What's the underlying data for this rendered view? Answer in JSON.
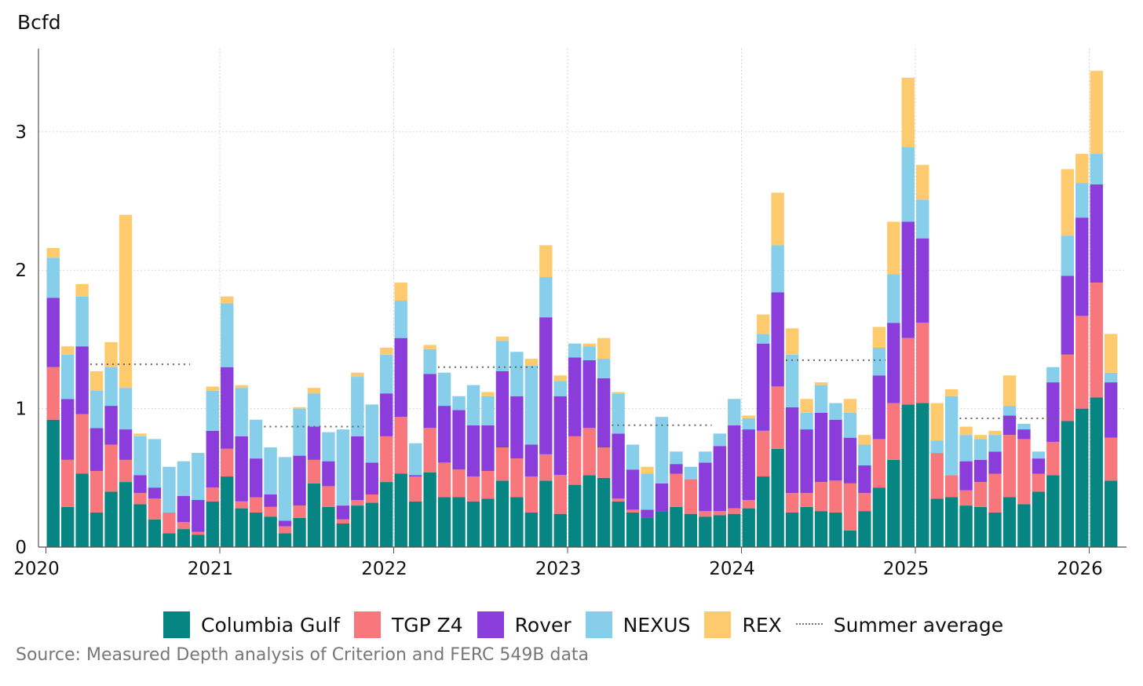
{
  "chart_data": {
    "type": "stacked-bar",
    "unit_label": "Bcfd",
    "ylim": [
      0,
      3.6
    ],
    "yticks": [
      0,
      1,
      2,
      3
    ],
    "xticks": [
      "2020",
      "2021",
      "2022",
      "2023",
      "2024",
      "2025",
      "2026"
    ],
    "first_month": "2020-01",
    "series": [
      {
        "name": "Columbia Gulf",
        "color": "#068582",
        "values": [
          0.92,
          0.29,
          0.53,
          0.25,
          0.4,
          0.47,
          0.31,
          0.2,
          0.1,
          0.13,
          0.09,
          0.33,
          0.51,
          0.28,
          0.25,
          0.22,
          0.1,
          0.21,
          0.46,
          0.29,
          0.17,
          0.3,
          0.32,
          0.47,
          0.53,
          0.33,
          0.54,
          0.36,
          0.36,
          0.33,
          0.35,
          0.48,
          0.36,
          0.25,
          0.48,
          0.24,
          0.45,
          0.52,
          0.5,
          0.33,
          0.25,
          0.21,
          0.26,
          0.29,
          0.24,
          0.22,
          0.23,
          0.24,
          0.28,
          0.51,
          0.71,
          0.25,
          0.29,
          0.26,
          0.25,
          0.12,
          0.26,
          0.43,
          0.63,
          1.03,
          1.04,
          0.35,
          0.36,
          0.3,
          0.29,
          0.25,
          0.36,
          0.31,
          0.4,
          0.52,
          0.91,
          1.0,
          1.08,
          0.48
        ]
      },
      {
        "name": "TGP Z4",
        "color": "#F8777D",
        "values": [
          0.38,
          0.34,
          0.43,
          0.3,
          0.34,
          0.16,
          0.08,
          0.15,
          0.15,
          0.05,
          0.02,
          0.1,
          0.2,
          0.05,
          0.11,
          0.07,
          0.05,
          0.09,
          0.17,
          0.15,
          0.03,
          0.04,
          0.06,
          0.33,
          0.41,
          0.18,
          0.32,
          0.25,
          0.2,
          0.18,
          0.2,
          0.24,
          0.28,
          0.26,
          0.19,
          0.28,
          0.35,
          0.34,
          0.22,
          0.02,
          0.02,
          0.0,
          0.0,
          0.24,
          0.25,
          0.04,
          0.03,
          0.04,
          0.06,
          0.33,
          0.45,
          0.14,
          0.1,
          0.21,
          0.23,
          0.34,
          0.13,
          0.35,
          0.41,
          0.48,
          0.58,
          0.33,
          0.16,
          0.11,
          0.18,
          0.28,
          0.45,
          0.47,
          0.13,
          0.24,
          0.48,
          0.67,
          0.83,
          0.31
        ]
      },
      {
        "name": "Rover",
        "color": "#8A3DDB",
        "values": [
          0.5,
          0.44,
          0.49,
          0.31,
          0.28,
          0.22,
          0.13,
          0.08,
          0.0,
          0.19,
          0.23,
          0.41,
          0.59,
          0.47,
          0.28,
          0.09,
          0.04,
          0.36,
          0.24,
          0.18,
          0.1,
          0.46,
          0.23,
          0.31,
          0.57,
          0.01,
          0.39,
          0.41,
          0.43,
          0.37,
          0.33,
          0.55,
          0.45,
          0.23,
          0.99,
          0.57,
          0.57,
          0.49,
          0.5,
          0.47,
          0.29,
          0.06,
          0.2,
          0.07,
          0.0,
          0.35,
          0.47,
          0.6,
          0.51,
          0.63,
          0.68,
          0.62,
          0.46,
          0.5,
          0.44,
          0.33,
          0.2,
          0.46,
          0.58,
          0.84,
          0.61,
          0.0,
          0.0,
          0.21,
          0.16,
          0.16,
          0.14,
          0.07,
          0.11,
          0.43,
          0.57,
          0.71,
          0.71,
          0.4
        ]
      },
      {
        "name": "NEXUS",
        "color": "#87CEEB",
        "values": [
          0.29,
          0.32,
          0.36,
          0.27,
          0.28,
          0.3,
          0.28,
          0.35,
          0.33,
          0.25,
          0.34,
          0.29,
          0.46,
          0.35,
          0.28,
          0.34,
          0.46,
          0.34,
          0.24,
          0.21,
          0.55,
          0.43,
          0.42,
          0.28,
          0.27,
          0.23,
          0.18,
          0.24,
          0.1,
          0.29,
          0.21,
          0.22,
          0.32,
          0.57,
          0.29,
          0.11,
          0.1,
          0.1,
          0.14,
          0.29,
          0.18,
          0.26,
          0.48,
          0.09,
          0.09,
          0.08,
          0.09,
          0.19,
          0.08,
          0.07,
          0.34,
          0.38,
          0.12,
          0.2,
          0.12,
          0.18,
          0.15,
          0.2,
          0.35,
          0.54,
          0.28,
          0.09,
          0.57,
          0.19,
          0.15,
          0.12,
          0.07,
          0.04,
          0.05,
          0.11,
          0.29,
          0.25,
          0.22,
          0.07
        ]
      },
      {
        "name": "REX",
        "color": "#FDCB6E",
        "values": [
          0.07,
          0.06,
          0.09,
          0.14,
          0.18,
          1.25,
          0.02,
          0.0,
          0.0,
          0.0,
          0.0,
          0.03,
          0.05,
          0.02,
          0.0,
          0.0,
          0.0,
          0.01,
          0.04,
          0.0,
          0.0,
          0.03,
          0.0,
          0.05,
          0.13,
          0.0,
          0.03,
          0.0,
          0.0,
          0.0,
          0.03,
          0.03,
          0.0,
          0.05,
          0.23,
          0.04,
          0.0,
          0.02,
          0.15,
          0.01,
          0.0,
          0.05,
          0.0,
          0.0,
          0.0,
          0.0,
          0.0,
          0.0,
          0.02,
          0.14,
          0.38,
          0.19,
          0.1,
          0.02,
          0.0,
          0.1,
          0.07,
          0.15,
          0.38,
          0.5,
          0.25,
          0.27,
          0.05,
          0.06,
          0.03,
          0.03,
          0.22,
          0.0,
          0.0,
          0.0,
          0.48,
          0.21,
          0.6,
          0.28
        ]
      }
    ],
    "summer_average": [
      {
        "from": "2020-04",
        "to": "2020-10",
        "value": 1.32
      },
      {
        "from": "2021-04",
        "to": "2021-10",
        "value": 0.87
      },
      {
        "from": "2022-04",
        "to": "2022-10",
        "value": 1.3
      },
      {
        "from": "2023-04",
        "to": "2023-10",
        "value": 0.88
      },
      {
        "from": "2024-04",
        "to": "2024-10",
        "value": 1.35
      },
      {
        "from": "2025-04",
        "to": "2025-10",
        "value": 0.93
      }
    ]
  },
  "legend": {
    "items": [
      {
        "label": "Columbia Gulf",
        "color": "#068582"
      },
      {
        "label": "TGP Z4",
        "color": "#F8777D"
      },
      {
        "label": "Rover",
        "color": "#8A3DDB"
      },
      {
        "label": "NEXUS",
        "color": "#87CEEB"
      },
      {
        "label": "REX",
        "color": "#FDCB6E"
      }
    ],
    "summer_label": "Summer average"
  },
  "source": "Source: Measured Depth analysis of Criterion and FERC 549B data"
}
